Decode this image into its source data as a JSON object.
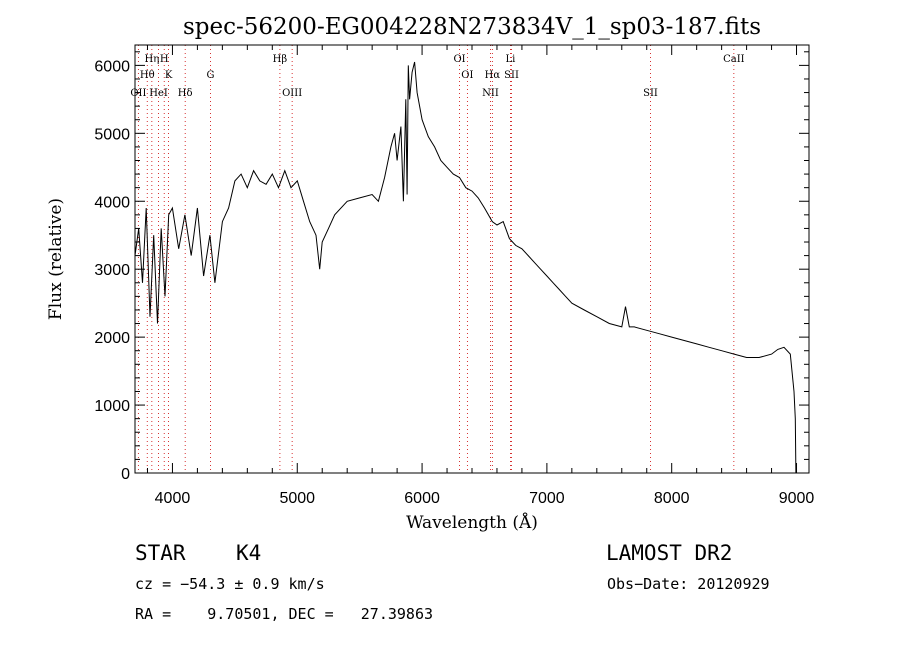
{
  "chart_data": {
    "type": "line",
    "title": "spec-56200-EG004228N273834V_1_sp03-187.fits",
    "xlabel": "Wavelength (Å)",
    "ylabel": "Flux (relative)",
    "xlim": [
      3700,
      9100
    ],
    "ylim": [
      0,
      6300
    ],
    "xticks": [
      4000,
      5000,
      6000,
      7000,
      8000,
      9000
    ],
    "yticks": [
      0,
      1000,
      2000,
      3000,
      4000,
      5000,
      6000
    ],
    "grid": false,
    "series": [
      {
        "x": [
          3700,
          3730,
          3760,
          3790,
          3820,
          3850,
          3880,
          3910,
          3940,
          3970,
          4000,
          4050,
          4100,
          4150,
          4200,
          4250,
          4300,
          4340,
          4400,
          4450,
          4500,
          4550,
          4600,
          4650,
          4700,
          4750,
          4800,
          4850,
          4900,
          4950,
          5000,
          5050,
          5100,
          5150,
          5180,
          5200,
          5250,
          5300,
          5400,
          5500,
          5600,
          5650,
          5700,
          5750,
          5780,
          5800,
          5830,
          5850,
          5870,
          5880,
          5890,
          5900,
          5920,
          5940,
          5960,
          5980,
          6000,
          6050,
          6100,
          6150,
          6200,
          6250,
          6300,
          6350,
          6400,
          6450,
          6500,
          6563,
          6600,
          6650,
          6700,
          6750,
          6800,
          6850,
          6900,
          6950,
          7000,
          7050,
          7100,
          7150,
          7200,
          7300,
          7400,
          7500,
          7600,
          7630,
          7660,
          7700,
          7800,
          7900,
          8000,
          8100,
          8200,
          8300,
          8400,
          8500,
          8600,
          8700,
          8800,
          8850,
          8900,
          8950,
          8980,
          8990,
          8995
        ],
        "y": [
          3200,
          3600,
          2800,
          3900,
          2300,
          3500,
          2200,
          3600,
          2600,
          3800,
          3900,
          3300,
          3800,
          3200,
          3900,
          2900,
          3500,
          2800,
          3700,
          3900,
          4300,
          4400,
          4200,
          4450,
          4300,
          4250,
          4400,
          4200,
          4450,
          4200,
          4300,
          4000,
          3700,
          3500,
          3000,
          3400,
          3600,
          3800,
          4000,
          4050,
          4100,
          4000,
          4350,
          4800,
          5000,
          4600,
          5100,
          4000,
          5500,
          4100,
          6000,
          5500,
          5900,
          6050,
          5600,
          5400,
          5200,
          4950,
          4800,
          4600,
          4500,
          4400,
          4350,
          4200,
          4150,
          4050,
          3900,
          3700,
          3650,
          3700,
          3450,
          3350,
          3300,
          3200,
          3100,
          3000,
          2900,
          2800,
          2700,
          2600,
          2500,
          2400,
          2300,
          2200,
          2150,
          2450,
          2150,
          2150,
          2100,
          2050,
          2000,
          1950,
          1900,
          1850,
          1800,
          1750,
          1700,
          1700,
          1750,
          1820,
          1850,
          1750,
          1200,
          800,
          0
        ]
      }
    ],
    "lines": [
      {
        "label": "OII",
        "x": 3727,
        "row": 2
      },
      {
        "label": "Hη",
        "x": 3835,
        "row": 0
      },
      {
        "label": "Hθ",
        "x": 3798,
        "row": 1
      },
      {
        "label": "HeI",
        "x": 3889,
        "row": 2
      },
      {
        "label": "H",
        "x": 3934,
        "row": 0
      },
      {
        "label": "K",
        "x": 3969,
        "row": 1
      },
      {
        "label": "Hδ",
        "x": 4102,
        "row": 2
      },
      {
        "label": "G",
        "x": 4305,
        "row": 1
      },
      {
        "label": "Hβ",
        "x": 4861,
        "row": 0
      },
      {
        "label": "OIII",
        "x": 4959,
        "row": 2
      },
      {
        "label": "OI",
        "x": 6300,
        "row": 0
      },
      {
        "label": "OI",
        "x": 6363,
        "row": 1
      },
      {
        "label": "NII",
        "x": 6548,
        "row": 2
      },
      {
        "label": "Hα",
        "x": 6563,
        "row": 1
      },
      {
        "label": "Li",
        "x": 6708,
        "row": 0
      },
      {
        "label": "SII",
        "x": 6717,
        "row": 1
      },
      {
        "label": "SII",
        "x": 7830,
        "row": 2
      },
      {
        "label": "CaII",
        "x": 8498,
        "row": 0
      }
    ]
  },
  "info": {
    "class": "STAR",
    "subclass": "K4",
    "survey": "LAMOST DR2",
    "cz": "cz = −54.3 ± 0.9 km/s",
    "obs_date": "Obs−Date: 20120929",
    "radec": "RA =    9.70501, DEC =   27.39863"
  }
}
